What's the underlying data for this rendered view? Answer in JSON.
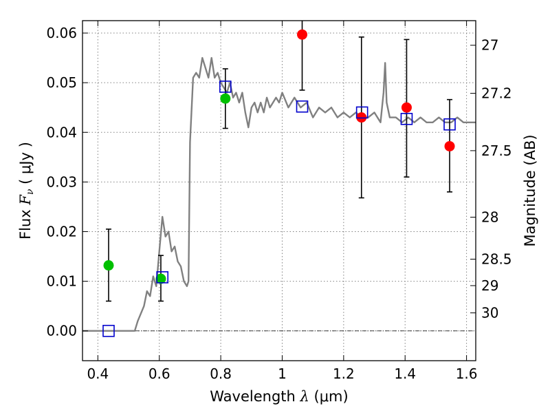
{
  "chart_data": {
    "type": "scatter",
    "title": "",
    "xlabel": {
      "pre": "Wavelength  ",
      "sym": "λ",
      "post": " (μm)"
    },
    "ylabel": {
      "pre": "Flux  ",
      "sym": "F",
      "sub": "ν",
      "post": "  ( μJy )"
    },
    "y2label": "Magnitude (AB)",
    "xlim": [
      0.35,
      1.63
    ],
    "ylim": [
      -0.006,
      0.0625
    ],
    "grid": true,
    "x_ticks": [
      0.4,
      0.6,
      0.8,
      1.0,
      1.2,
      1.4,
      1.6
    ],
    "x_tick_labels": [
      "0.4",
      "0.6",
      "0.8",
      "1",
      "1.2",
      "1.4",
      "1.6"
    ],
    "y_ticks": [
      0.0,
      0.01,
      0.02,
      0.03,
      0.04,
      0.05,
      0.06
    ],
    "y_tick_labels": [
      "0.00",
      "0.01",
      "0.02",
      "0.03",
      "0.04",
      "0.05",
      "0.06"
    ],
    "mag_ticks": [
      {
        "label": "27",
        "mag": 27.0
      },
      {
        "label": "27.2",
        "mag": 27.2
      },
      {
        "label": "27.5",
        "mag": 27.5
      },
      {
        "label": "28",
        "mag": 28.0
      },
      {
        "label": "28.5",
        "mag": 28.5
      },
      {
        "label": "29",
        "mag": 29.0
      },
      {
        "label": "30",
        "mag": 30.0
      }
    ],
    "colors": {
      "sed": "#808080",
      "green": "#00c000",
      "red": "#ff0000",
      "box": "#0000cc",
      "errorbar": "#000000",
      "grid": "#808080"
    },
    "series": [
      {
        "kind": "line",
        "points": [
          [
            0.35,
            0.0
          ],
          [
            0.52,
            0.0
          ],
          [
            0.53,
            0.002
          ],
          [
            0.55,
            0.005
          ],
          [
            0.56,
            0.008
          ],
          [
            0.57,
            0.007
          ],
          [
            0.58,
            0.011
          ],
          [
            0.59,
            0.009
          ],
          [
            0.6,
            0.016
          ],
          [
            0.61,
            0.023
          ],
          [
            0.62,
            0.019
          ],
          [
            0.63,
            0.02
          ],
          [
            0.64,
            0.016
          ],
          [
            0.65,
            0.017
          ],
          [
            0.66,
            0.014
          ],
          [
            0.67,
            0.013
          ],
          [
            0.68,
            0.01
          ],
          [
            0.69,
            0.009
          ],
          [
            0.695,
            0.01
          ],
          [
            0.7,
            0.038
          ],
          [
            0.71,
            0.051
          ],
          [
            0.72,
            0.052
          ],
          [
            0.73,
            0.051
          ],
          [
            0.74,
            0.055
          ],
          [
            0.75,
            0.053
          ],
          [
            0.76,
            0.051
          ],
          [
            0.77,
            0.055
          ],
          [
            0.78,
            0.051
          ],
          [
            0.79,
            0.052
          ],
          [
            0.8,
            0.05
          ],
          [
            0.81,
            0.049
          ],
          [
            0.82,
            0.048
          ],
          [
            0.83,
            0.05
          ],
          [
            0.84,
            0.047
          ],
          [
            0.85,
            0.048
          ],
          [
            0.86,
            0.046
          ],
          [
            0.87,
            0.048
          ],
          [
            0.88,
            0.044
          ],
          [
            0.89,
            0.041
          ],
          [
            0.9,
            0.045
          ],
          [
            0.91,
            0.046
          ],
          [
            0.92,
            0.044
          ],
          [
            0.93,
            0.046
          ],
          [
            0.94,
            0.044
          ],
          [
            0.95,
            0.047
          ],
          [
            0.96,
            0.045
          ],
          [
            0.97,
            0.046
          ],
          [
            0.98,
            0.047
          ],
          [
            0.99,
            0.046
          ],
          [
            1.0,
            0.048
          ],
          [
            1.02,
            0.045
          ],
          [
            1.04,
            0.047
          ],
          [
            1.06,
            0.045
          ],
          [
            1.08,
            0.046
          ],
          [
            1.1,
            0.043
          ],
          [
            1.12,
            0.045
          ],
          [
            1.14,
            0.044
          ],
          [
            1.16,
            0.045
          ],
          [
            1.18,
            0.043
          ],
          [
            1.2,
            0.044
          ],
          [
            1.22,
            0.043
          ],
          [
            1.24,
            0.044
          ],
          [
            1.26,
            0.043
          ],
          [
            1.28,
            0.043
          ],
          [
            1.3,
            0.044
          ],
          [
            1.32,
            0.042
          ],
          [
            1.33,
            0.048
          ],
          [
            1.335,
            0.054
          ],
          [
            1.34,
            0.046
          ],
          [
            1.35,
            0.043
          ],
          [
            1.37,
            0.043
          ],
          [
            1.39,
            0.042
          ],
          [
            1.41,
            0.043
          ],
          [
            1.43,
            0.042
          ],
          [
            1.45,
            0.043
          ],
          [
            1.47,
            0.042
          ],
          [
            1.49,
            0.042
          ],
          [
            1.51,
            0.043
          ],
          [
            1.53,
            0.042
          ],
          [
            1.55,
            0.042
          ],
          [
            1.57,
            0.043
          ],
          [
            1.59,
            0.042
          ],
          [
            1.61,
            0.042
          ],
          [
            1.63,
            0.042
          ]
        ]
      },
      {
        "kind": "errorbar-points",
        "color": "green",
        "points": [
          {
            "x": 0.435,
            "y": 0.0132,
            "ylo": 0.006,
            "yhi": 0.0205
          },
          {
            "x": 0.605,
            "y": 0.0105,
            "ylo": 0.006,
            "yhi": 0.0152
          },
          {
            "x": 0.815,
            "y": 0.0468,
            "ylo": 0.0408,
            "yhi": 0.0528
          }
        ]
      },
      {
        "kind": "errorbar-points",
        "color": "red",
        "points": [
          {
            "x": 1.065,
            "y": 0.0597,
            "ylo": 0.0485,
            "yhi": 0.0625
          },
          {
            "x": 1.258,
            "y": 0.043,
            "ylo": 0.0268,
            "yhi": 0.0592
          },
          {
            "x": 1.405,
            "y": 0.045,
            "ylo": 0.031,
            "yhi": 0.0587
          },
          {
            "x": 1.545,
            "y": 0.0372,
            "ylo": 0.028,
            "yhi": 0.0466
          }
        ]
      },
      {
        "kind": "squares",
        "color": "box",
        "points": [
          {
            "x": 0.435,
            "y": 0.0
          },
          {
            "x": 0.61,
            "y": 0.0108
          },
          {
            "x": 0.815,
            "y": 0.0492
          },
          {
            "x": 1.065,
            "y": 0.0452
          },
          {
            "x": 1.26,
            "y": 0.044
          },
          {
            "x": 1.405,
            "y": 0.0427
          },
          {
            "x": 1.545,
            "y": 0.0416
          }
        ]
      }
    ]
  }
}
